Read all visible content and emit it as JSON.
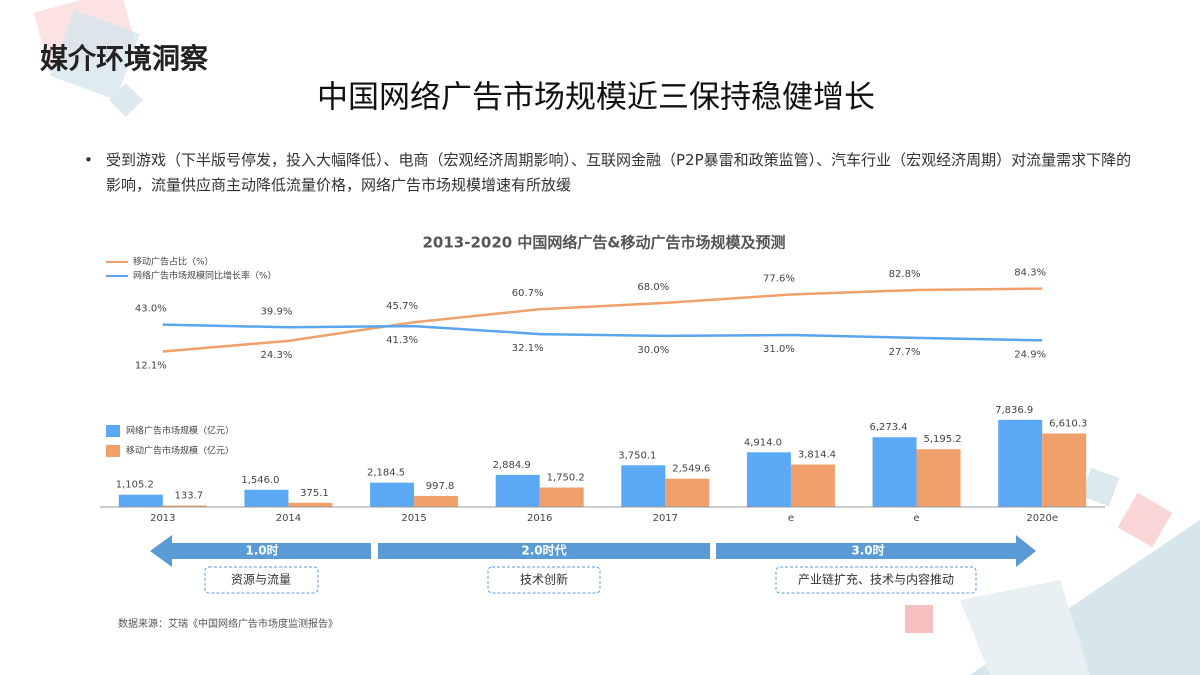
{
  "header": {
    "section": "媒介环境洞察",
    "title": "中国网络广告市场规模近三保持稳健增长",
    "bullet": "受到游戏（下半版号停发，投入大幅降低）、电商（宏观经济周期影响）、互联网金融（P2P暴雷和政策监管）、汽车行业（宏观经济周期）对流量需求下降的影响，流量供应商主动降低流量价格，网络广告市场规模增速有所放缓"
  },
  "chart_data": [
    {
      "type": "line",
      "title": "2013-2020 中国网络广告&移动广告市场规模及预测",
      "ylim": [
        0,
        100
      ],
      "series": [
        {
          "name": "移动广告占比（%）",
          "color": "#f0a06a",
          "values": [
            12.1,
            24.3,
            45.7,
            60.7,
            68.0,
            77.6,
            82.8,
            84.3
          ],
          "value_labels": [
            "12.1%",
            "24.3%",
            "45.7%",
            "60.7%",
            "68.0%",
            "77.6%",
            "82.8%",
            "84.3%"
          ]
        },
        {
          "name": "网络广告市场规模同比增长率（%）",
          "color": "#5aa5ec",
          "values": [
            43.0,
            39.9,
            41.3,
            32.1,
            30.0,
            31.0,
            27.7,
            24.9
          ],
          "value_labels": [
            "43.0%",
            "39.9%",
            "41.3%",
            "32.1%",
            "30.0%",
            "31.0%",
            "27.7%",
            "24.9%"
          ]
        }
      ]
    },
    {
      "type": "bar",
      "categories": [
        "2013",
        "2014",
        "2015",
        "2016",
        "2017",
        "e",
        "e",
        "2020e"
      ],
      "ylim": [
        0,
        8000
      ],
      "series": [
        {
          "name": "网络广告市场规模（亿元）",
          "color": "#5ba8f5",
          "values": [
            1105.2,
            1546.0,
            2184.5,
            2884.9,
            3750.1,
            4914.0,
            6273.4,
            7836.9
          ],
          "value_labels": [
            "1,105.2",
            "1,546.0",
            "2,184.5",
            "2,884.9",
            "3,750.1",
            "4,914.0",
            "6,273.4",
            "7,836.9"
          ]
        },
        {
          "name": "移动广告市场规模（亿元）",
          "color": "#f0a06a",
          "values": [
            133.7,
            375.1,
            997.8,
            1750.2,
            2549.6,
            3814.4,
            5195.2,
            6610.3
          ],
          "value_labels": [
            "133.7",
            "375.1",
            "997.8",
            "1,750.2",
            "2,549.6",
            "3,814.4",
            "5,195.2",
            "6,610.3"
          ]
        }
      ]
    }
  ],
  "timeline": [
    {
      "label": "1.0时",
      "box": "资源与流量"
    },
    {
      "label": "2.0时代",
      "box": "技术创新"
    },
    {
      "label": "3.0时",
      "box": "产业链扩充、技术与内容推动"
    }
  ],
  "source": "数据来源：艾瑞《中国网络广告市场度监测报告》"
}
